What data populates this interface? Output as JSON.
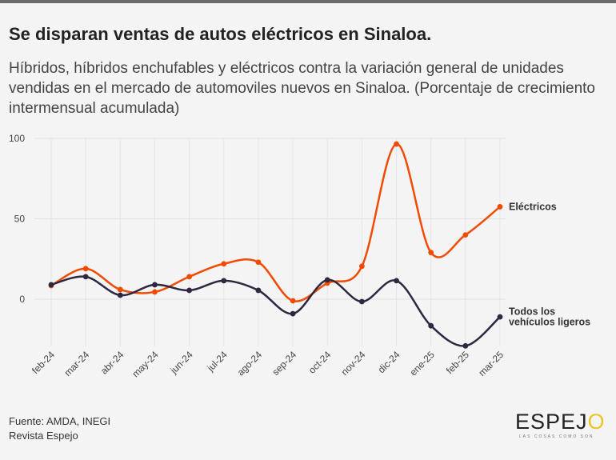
{
  "header": {
    "title": "Se disparan ventas de autos eléctricos en Sinaloa.",
    "subtitle": "Híbridos, híbridos enchufables y eléctricos contra la variación general de unidades vendidas en el mercado de automoviles nuevos en Sinaloa. (Porcentaje de crecimiento intermensual acumulada)"
  },
  "chart_data": {
    "type": "line",
    "title": "Se disparan ventas de autos eléctricos en Sinaloa.",
    "xlabel": "",
    "ylabel": "",
    "ylim": [
      -30,
      100
    ],
    "yticks": [
      0,
      50,
      100
    ],
    "grid": true,
    "categories": [
      "feb-24",
      "mar-24",
      "abr-24",
      "may-24",
      "jun-24",
      "jul-24",
      "ago-24",
      "sep-24",
      "oct-24",
      "nov-24",
      "dic-24",
      "ene-25",
      "feb-25",
      "mar-25"
    ],
    "series": [
      {
        "name": "Eléctricos",
        "label_lines": [
          "Eléctricos"
        ],
        "color": "#f24a00",
        "values": [
          8.5,
          19,
          6,
          4.5,
          14,
          22,
          23,
          -1,
          10,
          20.5,
          96.5,
          29,
          40,
          57.5
        ]
      },
      {
        "name": "Todos los vehículos ligeros",
        "label_lines": [
          "Todos los",
          "vehículos ligeros"
        ],
        "color": "#2e2740",
        "values": [
          9,
          14,
          2.5,
          9,
          5.5,
          11.5,
          5.5,
          -9,
          12,
          -1.5,
          11.5,
          -16.5,
          -29,
          -11
        ]
      }
    ]
  },
  "footer": {
    "source": "Fuente: AMDA, INEGI",
    "publisher": "Revista Espejo"
  },
  "logo": {
    "text_main": "ESPEJ",
    "text_o": "O",
    "tagline": "LAS COSAS COMO SON"
  }
}
